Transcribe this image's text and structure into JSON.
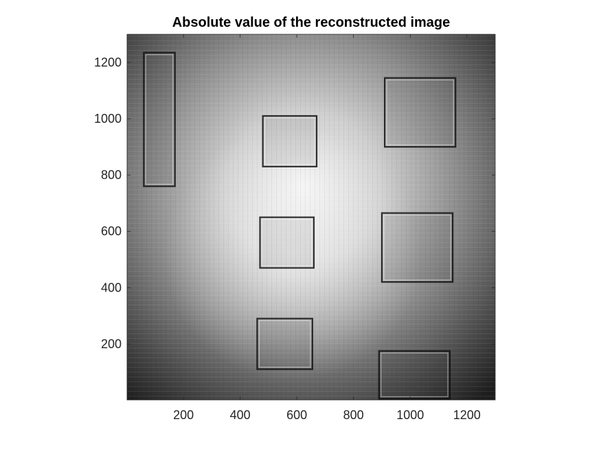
{
  "chart_data": {
    "type": "heatmap",
    "title": "Absolute value of the reconstructed image",
    "xlabel": "",
    "ylabel": "",
    "colormap": "gray",
    "xlim": [
      1,
      1300
    ],
    "ylim": [
      1,
      1300
    ],
    "y_direction": "normal",
    "x_ticks": [
      200,
      400,
      600,
      800,
      1000,
      1200
    ],
    "y_ticks": [
      200,
      400,
      600,
      800,
      1000,
      1200
    ],
    "x_tick_labels": [
      "200",
      "400",
      "600",
      "800",
      "1000",
      "1200"
    ],
    "y_tick_labels": [
      "200",
      "400",
      "600",
      "800",
      "1000",
      "1200"
    ],
    "grid": false,
    "image_features": [
      {
        "id": "tall-rect",
        "x": [
          60,
          170
        ],
        "y": [
          760,
          1235
        ]
      },
      {
        "id": "square-top-center",
        "x": [
          480,
          670
        ],
        "y": [
          830,
          1010
        ]
      },
      {
        "id": "square-top-right",
        "x": [
          910,
          1160
        ],
        "y": [
          900,
          1145
        ]
      },
      {
        "id": "square-mid-center",
        "x": [
          470,
          660
        ],
        "y": [
          470,
          650
        ]
      },
      {
        "id": "square-mid-right",
        "x": [
          900,
          1150
        ],
        "y": [
          420,
          665
        ]
      },
      {
        "id": "square-bottom-center",
        "x": [
          460,
          655
        ],
        "y": [
          110,
          290
        ]
      },
      {
        "id": "square-bottom-right",
        "x": [
          890,
          1140
        ],
        "y": [
          5,
          175
        ]
      }
    ]
  }
}
